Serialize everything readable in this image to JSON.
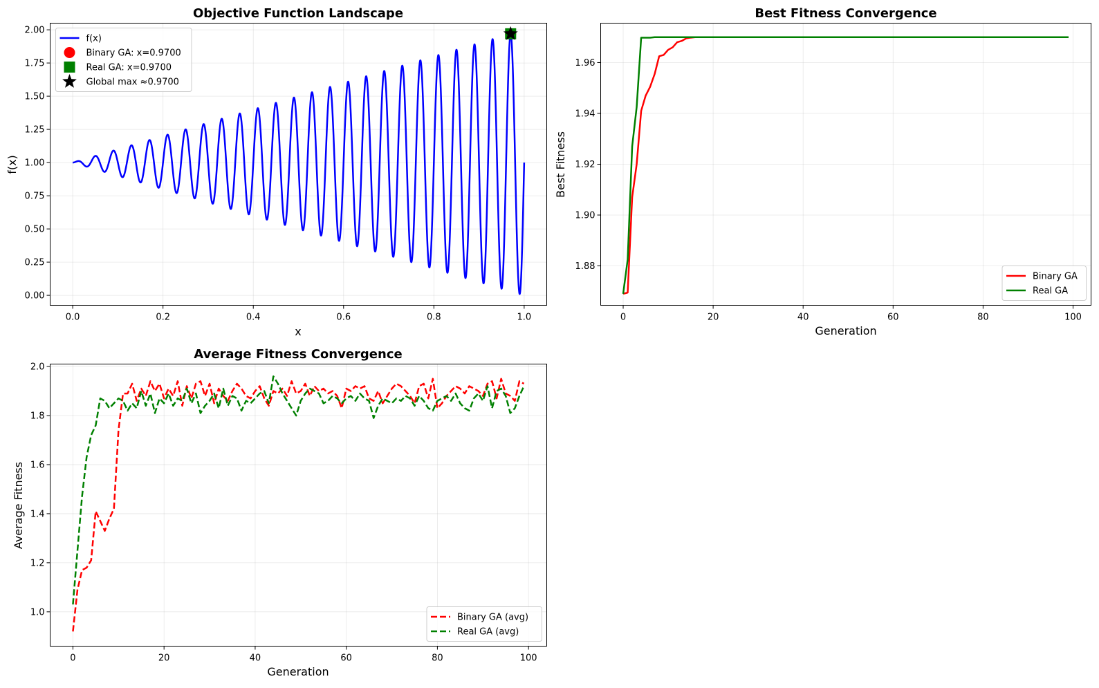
{
  "chart_data": [
    {
      "id": "objective",
      "type": "line",
      "title": "Objective Function Landscape",
      "xlabel": "x",
      "ylabel": "f(x)",
      "xlim": [
        -0.05,
        1.05
      ],
      "ylim": [
        -0.075,
        2.05
      ],
      "xticks": [
        0.0,
        0.2,
        0.4,
        0.6,
        0.8,
        1.0
      ],
      "xtick_labels": [
        "0.0",
        "0.2",
        "0.4",
        "0.6",
        "0.8",
        "1.0"
      ],
      "yticks": [
        0.0,
        0.25,
        0.5,
        0.75,
        1.0,
        1.25,
        1.5,
        1.75,
        2.0
      ],
      "ytick_labels": [
        "0.00",
        "0.25",
        "0.50",
        "0.75",
        "1.00",
        "1.25",
        "1.50",
        "1.75",
        "2.00"
      ],
      "grid": true,
      "legend_position": "upper-left",
      "function": {
        "expression": "1 + x*sin(50*pi*x)",
        "x_range": [
          0,
          1
        ],
        "color": "#0000ff"
      },
      "markers": [
        {
          "name": "Binary GA: x=0.9700",
          "x": 0.97,
          "y": 1.97,
          "shape": "circle",
          "color": "#ff0000"
        },
        {
          "name": "Real GA: x=0.9700",
          "x": 0.97,
          "y": 1.97,
          "shape": "square",
          "color": "#008000"
        },
        {
          "name": "Global max ≈0.9700",
          "x": 0.97,
          "y": 1.97,
          "shape": "star",
          "color": "#000000"
        }
      ],
      "legend": [
        {
          "label": "f(x)",
          "kind": "line",
          "color": "#0000ff"
        },
        {
          "label": "Binary GA: x=0.9700",
          "kind": "circle",
          "color": "#ff0000"
        },
        {
          "label": "Real GA: x=0.9700",
          "kind": "square",
          "color": "#008000"
        },
        {
          "label": "Global max ≈0.9700",
          "kind": "star",
          "color": "#000000"
        }
      ]
    },
    {
      "id": "best",
      "type": "line",
      "title": "Best Fitness Convergence",
      "xlabel": "Generation",
      "ylabel": "Best Fitness",
      "xlim": [
        -5,
        104
      ],
      "ylim": [
        1.8645,
        1.9755
      ],
      "xticks": [
        0,
        20,
        40,
        60,
        80,
        100
      ],
      "xtick_labels": [
        "0",
        "20",
        "40",
        "60",
        "80",
        "100"
      ],
      "yticks": [
        1.88,
        1.9,
        1.92,
        1.94,
        1.96
      ],
      "ytick_labels": [
        "1.88",
        "1.90",
        "1.92",
        "1.94",
        "1.96"
      ],
      "grid": true,
      "legend_position": "lower-right",
      "series": [
        {
          "name": "Binary GA",
          "color": "#ff0000",
          "dash": "solid",
          "x": [
            0,
            1,
            2,
            3,
            4,
            5,
            6,
            7,
            8,
            9,
            10,
            11,
            12,
            13,
            14,
            15,
            16,
            17,
            18,
            99
          ],
          "values": [
            1.869,
            1.8695,
            1.907,
            1.92,
            1.941,
            1.947,
            1.9505,
            1.9555,
            1.9625,
            1.963,
            1.965,
            1.966,
            1.968,
            1.9685,
            1.9695,
            1.9698,
            1.97,
            1.97,
            1.97,
            1.97
          ]
        },
        {
          "name": "Real GA",
          "color": "#008000",
          "dash": "solid",
          "x": [
            0,
            1,
            2,
            3,
            4,
            5,
            6,
            7,
            99
          ],
          "values": [
            1.869,
            1.8825,
            1.927,
            1.9425,
            1.9698,
            1.9698,
            1.9698,
            1.97,
            1.97
          ]
        }
      ]
    },
    {
      "id": "average",
      "type": "line",
      "title": "Average Fitness Convergence",
      "xlabel": "Generation",
      "ylabel": "Average Fitness",
      "xlim": [
        -5,
        104
      ],
      "ylim": [
        0.86,
        2.01
      ],
      "xticks": [
        0,
        20,
        40,
        60,
        80,
        100
      ],
      "xtick_labels": [
        "0",
        "20",
        "40",
        "60",
        "80",
        "100"
      ],
      "yticks": [
        1.0,
        1.2,
        1.4,
        1.6,
        1.8,
        2.0
      ],
      "ytick_labels": [
        "1.0",
        "1.2",
        "1.4",
        "1.6",
        "1.8",
        "2.0"
      ],
      "grid": true,
      "legend_position": "lower-right",
      "series": [
        {
          "name": "Binary GA (avg)",
          "color": "#ff0000",
          "dash": "dashed",
          "values": [
            0.92,
            1.09,
            1.17,
            1.18,
            1.21,
            1.41,
            1.37,
            1.33,
            1.38,
            1.42,
            1.74,
            1.89,
            1.89,
            1.93,
            1.86,
            1.91,
            1.88,
            1.94,
            1.9,
            1.93,
            1.87,
            1.91,
            1.88,
            1.94,
            1.84,
            1.92,
            1.87,
            1.93,
            1.94,
            1.88,
            1.93,
            1.85,
            1.91,
            1.88,
            1.86,
            1.9,
            1.93,
            1.91,
            1.88,
            1.87,
            1.9,
            1.92,
            1.87,
            1.84,
            1.9,
            1.89,
            1.91,
            1.88,
            1.94,
            1.89,
            1.9,
            1.93,
            1.88,
            1.92,
            1.9,
            1.91,
            1.89,
            1.9,
            1.88,
            1.83,
            1.91,
            1.9,
            1.92,
            1.91,
            1.92,
            1.87,
            1.86,
            1.9,
            1.85,
            1.88,
            1.91,
            1.93,
            1.92,
            1.9,
            1.88,
            1.85,
            1.92,
            1.93,
            1.87,
            1.95,
            1.83,
            1.85,
            1.88,
            1.9,
            1.92,
            1.91,
            1.89,
            1.92,
            1.91,
            1.9,
            1.88,
            1.93,
            1.94,
            1.87,
            1.95,
            1.89,
            1.88,
            1.86,
            1.94,
            1.93
          ]
        },
        {
          "name": "Real GA (avg)",
          "color": "#008000",
          "dash": "dashed",
          "values": [
            1.03,
            1.25,
            1.47,
            1.63,
            1.72,
            1.76,
            1.87,
            1.86,
            1.83,
            1.85,
            1.87,
            1.86,
            1.82,
            1.85,
            1.83,
            1.9,
            1.84,
            1.89,
            1.81,
            1.87,
            1.85,
            1.89,
            1.84,
            1.87,
            1.86,
            1.91,
            1.85,
            1.89,
            1.81,
            1.84,
            1.86,
            1.89,
            1.83,
            1.91,
            1.84,
            1.88,
            1.87,
            1.82,
            1.86,
            1.85,
            1.87,
            1.89,
            1.9,
            1.85,
            1.96,
            1.93,
            1.89,
            1.86,
            1.83,
            1.8,
            1.86,
            1.89,
            1.91,
            1.9,
            1.89,
            1.85,
            1.86,
            1.88,
            1.87,
            1.85,
            1.87,
            1.88,
            1.86,
            1.89,
            1.87,
            1.86,
            1.79,
            1.84,
            1.87,
            1.86,
            1.85,
            1.87,
            1.86,
            1.88,
            1.87,
            1.84,
            1.88,
            1.86,
            1.83,
            1.82,
            1.86,
            1.87,
            1.88,
            1.86,
            1.89,
            1.85,
            1.83,
            1.82,
            1.87,
            1.89,
            1.86,
            1.92,
            1.83,
            1.9,
            1.91,
            1.88,
            1.81,
            1.83,
            1.88,
            1.92
          ]
        }
      ]
    }
  ]
}
